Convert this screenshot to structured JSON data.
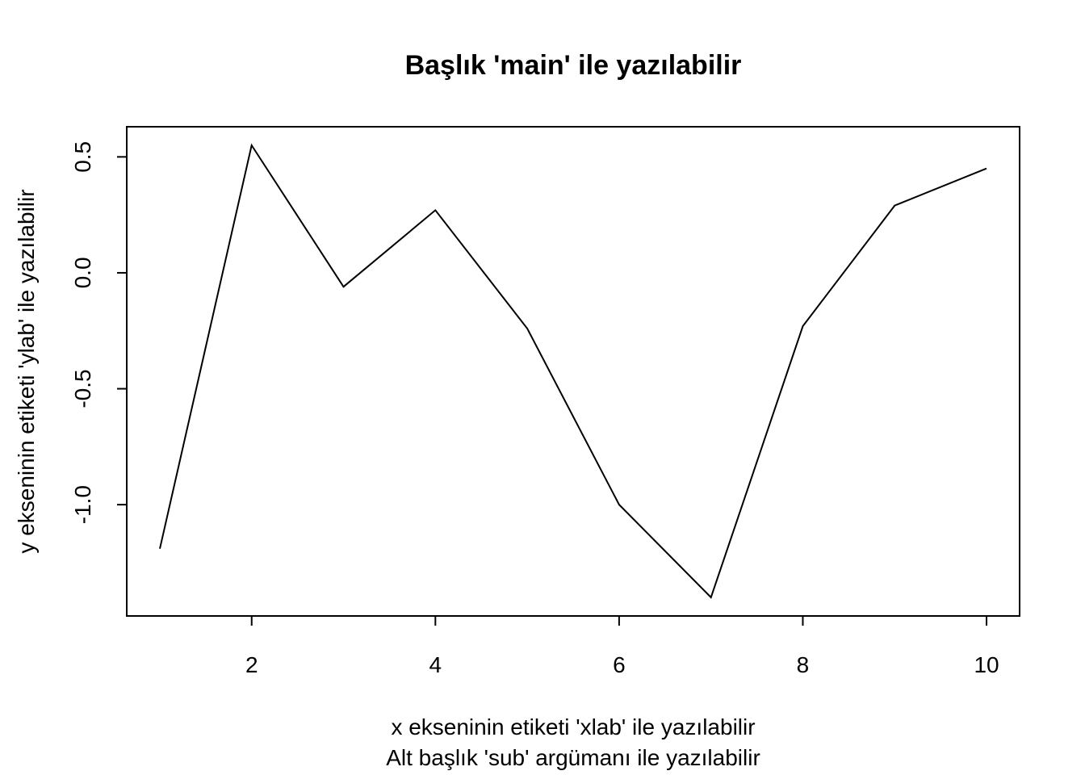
{
  "chart_data": {
    "type": "line",
    "title": "Başlık 'main' ile yazılabilir",
    "xlabel": "x ekseninin etiketi 'xlab' ile yazılabilir",
    "subtitle": "Alt başlık 'sub' argümanı ile yazılabilir",
    "ylabel": "y ekseninin etiketi 'ylab' ile yazılabilir",
    "x": [
      1,
      2,
      3,
      4,
      5,
      6,
      7,
      8,
      9,
      10
    ],
    "values": [
      -1.19,
      0.55,
      -0.06,
      0.27,
      -0.24,
      -1.0,
      -1.4,
      -0.23,
      0.29,
      0.45
    ],
    "xlim": [
      0.64,
      10.36
    ],
    "ylim": [
      -1.48,
      0.63
    ],
    "x_ticks": [
      2,
      4,
      6,
      8,
      10
    ],
    "x_tick_labels": [
      "2",
      "4",
      "6",
      "8",
      "10"
    ],
    "y_ticks": [
      -1.0,
      -0.5,
      0.0,
      0.5
    ],
    "y_tick_labels": [
      "-1.0",
      "-0.5",
      "0.0",
      "0.5"
    ],
    "grid": false,
    "line_color": "#000000"
  }
}
